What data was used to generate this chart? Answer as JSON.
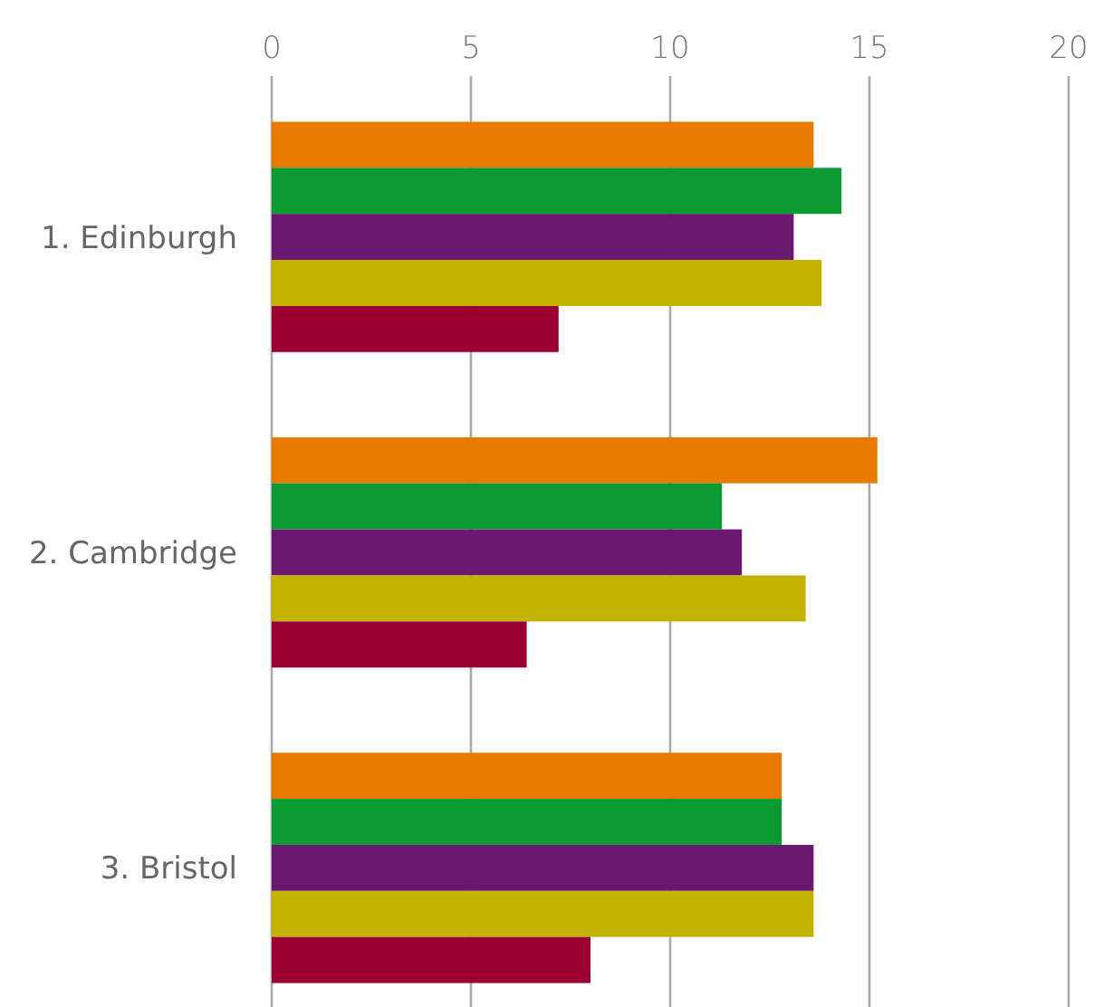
{
  "chart_data": {
    "type": "bar",
    "orientation": "horizontal",
    "categories": [
      "1. Edinburgh",
      "2. Cambridge",
      "3. Bristol"
    ],
    "series": [
      {
        "color": "#e87a00",
        "values": [
          13.6,
          15.2,
          12.8
        ]
      },
      {
        "color": "#0a9a33",
        "values": [
          14.3,
          11.3,
          12.8
        ]
      },
      {
        "color": "#6b1870",
        "values": [
          13.1,
          11.8,
          13.6
        ]
      },
      {
        "color": "#c4b200",
        "values": [
          13.8,
          13.4,
          13.6
        ]
      },
      {
        "color": "#9a0030",
        "values": [
          7.2,
          6.4,
          8.0
        ]
      }
    ],
    "xlim": [
      0,
      20
    ],
    "xticks": [
      0,
      5,
      10,
      15,
      20
    ],
    "grid": "x"
  }
}
